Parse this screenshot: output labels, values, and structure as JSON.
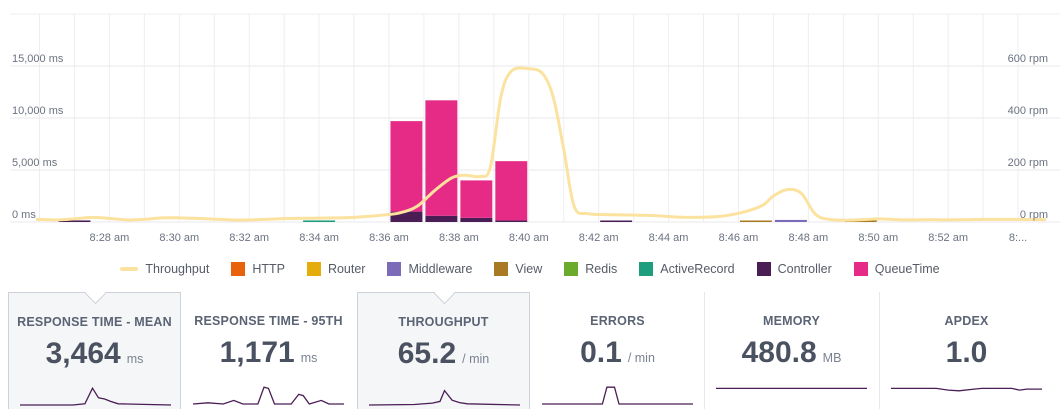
{
  "chart_data": {
    "type": "bar",
    "y_left_label": "",
    "y_right_label": "",
    "y_left_ticks": [
      "0 ms",
      "5,000 ms",
      "10,000 ms",
      "15,000 ms"
    ],
    "y_right_ticks": [
      "0 rpm",
      "200 rpm",
      "400 rpm",
      "600 rpm"
    ],
    "ylim_left": [
      0,
      20000
    ],
    "ylim_right": [
      0,
      800
    ],
    "x_tick_labels": [
      "8:28 am",
      "8:30 am",
      "8:32 am",
      "8:34 am",
      "8:36 am",
      "8:38 am",
      "8:40 am",
      "8:42 am",
      "8:44 am",
      "8:46 am",
      "8:48 am",
      "8:50 am",
      "8:52 am",
      "8:..."
    ],
    "x_range_minutes": [
      25.9,
      54.8
    ],
    "bar_series": [
      {
        "name": "HTTP",
        "color": "#e8620c"
      },
      {
        "name": "Router",
        "color": "#e5ad0b"
      },
      {
        "name": "Middleware",
        "color": "#7b6bb8"
      },
      {
        "name": "View",
        "color": "#a87a24"
      },
      {
        "name": "Redis",
        "color": "#6aab2e"
      },
      {
        "name": "ActiveRecord",
        "color": "#1f9e7e"
      },
      {
        "name": "Controller",
        "color": "#4a1d55"
      },
      {
        "name": "QueueTime",
        "color": "#e62b87"
      }
    ],
    "bars": [
      {
        "minute": 27,
        "segments": {
          "Controller": 150
        }
      },
      {
        "minute": 34,
        "segments": {
          "ActiveRecord": 150
        }
      },
      {
        "minute": 36.5,
        "segments": {
          "QueueTime": 8700,
          "Controller": 1000
        }
      },
      {
        "minute": 37.5,
        "segments": {
          "QueueTime": 11100,
          "Controller": 600
        }
      },
      {
        "minute": 38.5,
        "segments": {
          "QueueTime": 3600,
          "Controller": 400
        }
      },
      {
        "minute": 39.5,
        "segments": {
          "QueueTime": 5700,
          "Controller": 150
        }
      },
      {
        "minute": 42.5,
        "segments": {
          "Controller": 100
        }
      },
      {
        "minute": 46.5,
        "segments": {
          "View": 100
        }
      },
      {
        "minute": 47.5,
        "segments": {
          "Middleware": 200
        }
      },
      {
        "minute": 49.5,
        "segments": {
          "View": 100
        }
      }
    ],
    "throughput": {
      "name": "Throughput",
      "color": "#fbe29f",
      "points": [
        [
          25.9,
          10
        ],
        [
          26.5,
          8
        ],
        [
          27,
          12
        ],
        [
          27.5,
          18
        ],
        [
          28,
          14
        ],
        [
          28.5,
          8
        ],
        [
          29,
          10
        ],
        [
          29.5,
          16
        ],
        [
          30,
          16
        ],
        [
          30.5,
          14
        ],
        [
          31,
          11
        ],
        [
          31.5,
          8
        ],
        [
          32,
          8
        ],
        [
          33,
          13
        ],
        [
          34,
          15
        ],
        [
          35,
          18
        ],
        [
          35.7,
          25
        ],
        [
          36.3,
          35
        ],
        [
          36.8,
          60
        ],
        [
          37.3,
          120
        ],
        [
          37.8,
          170
        ],
        [
          38.2,
          180
        ],
        [
          38.6,
          175
        ],
        [
          38.9,
          210
        ],
        [
          39.2,
          480
        ],
        [
          39.5,
          580
        ],
        [
          40,
          590
        ],
        [
          40.4,
          570
        ],
        [
          40.7,
          480
        ],
        [
          41,
          280
        ],
        [
          41.3,
          60
        ],
        [
          41.7,
          32
        ],
        [
          42.5,
          28
        ],
        [
          43.5,
          25
        ],
        [
          44.5,
          18
        ],
        [
          45.5,
          22
        ],
        [
          46.2,
          40
        ],
        [
          46.7,
          65
        ],
        [
          47,
          100
        ],
        [
          47.4,
          125
        ],
        [
          47.8,
          110
        ],
        [
          48.2,
          30
        ],
        [
          48.6,
          10
        ],
        [
          49.2,
          7
        ],
        [
          50,
          12
        ],
        [
          50.5,
          9
        ],
        [
          51,
          8
        ],
        [
          51.5,
          9
        ],
        [
          52,
          8
        ],
        [
          53,
          10
        ],
        [
          54,
          10
        ],
        [
          54.8,
          9
        ]
      ]
    }
  },
  "legend": [
    {
      "label": "Throughput",
      "color": "#fbe29f",
      "kind": "line"
    },
    {
      "label": "HTTP",
      "color": "#e8620c",
      "kind": "box"
    },
    {
      "label": "Router",
      "color": "#e5ad0b",
      "kind": "box"
    },
    {
      "label": "Middleware",
      "color": "#7b6bb8",
      "kind": "box"
    },
    {
      "label": "View",
      "color": "#a87a24",
      "kind": "box"
    },
    {
      "label": "Redis",
      "color": "#6aab2e",
      "kind": "box"
    },
    {
      "label": "ActiveRecord",
      "color": "#1f9e7e",
      "kind": "box"
    },
    {
      "label": "Controller",
      "color": "#4a1d55",
      "kind": "box"
    },
    {
      "label": "QueueTime",
      "color": "#e62b87",
      "kind": "box"
    }
  ],
  "cards": [
    {
      "title": "RESPONSE TIME - MEAN",
      "value": "3,464",
      "unit": "ms",
      "selected": true,
      "spark": [
        [
          0,
          0
        ],
        [
          0.35,
          0
        ],
        [
          0.43,
          0.05
        ],
        [
          0.48,
          0.7
        ],
        [
          0.52,
          0.3
        ],
        [
          0.56,
          0.25
        ],
        [
          0.6,
          0.15
        ],
        [
          0.65,
          0.05
        ],
        [
          1,
          0
        ]
      ]
    },
    {
      "title": "RESPONSE TIME - 95TH",
      "value": "1,171",
      "unit": "ms",
      "selected": false,
      "spark": [
        [
          0,
          0
        ],
        [
          0.1,
          0.05
        ],
        [
          0.2,
          0
        ],
        [
          0.27,
          0.15
        ],
        [
          0.33,
          0
        ],
        [
          0.43,
          0
        ],
        [
          0.47,
          0.7
        ],
        [
          0.5,
          0.65
        ],
        [
          0.54,
          0
        ],
        [
          0.65,
          0
        ],
        [
          0.7,
          0.4
        ],
        [
          0.73,
          0.35
        ],
        [
          0.77,
          0
        ],
        [
          0.85,
          0.15
        ],
        [
          0.9,
          0
        ],
        [
          1,
          0
        ]
      ]
    },
    {
      "title": "THROUGHPUT",
      "value": "65.2",
      "unit": "/ min",
      "selected": true,
      "spark": [
        [
          0,
          0
        ],
        [
          0.3,
          0.02
        ],
        [
          0.42,
          0.08
        ],
        [
          0.47,
          0.15
        ],
        [
          0.5,
          0.6
        ],
        [
          0.55,
          0.2
        ],
        [
          0.6,
          0.1
        ],
        [
          0.65,
          0.05
        ],
        [
          1,
          0
        ]
      ]
    },
    {
      "title": "ERRORS",
      "value": "0.1",
      "unit": "/ min",
      "selected": false,
      "spark": [
        [
          0,
          0
        ],
        [
          0.4,
          0
        ],
        [
          0.43,
          0.7
        ],
        [
          0.48,
          0.7
        ],
        [
          0.51,
          0
        ],
        [
          1,
          0
        ]
      ]
    },
    {
      "title": "MEMORY",
      "value": "480.8",
      "unit": "MB",
      "selected": false,
      "spark": [
        [
          0,
          0.65
        ],
        [
          1,
          0.65
        ]
      ]
    },
    {
      "title": "APDEX",
      "value": "1.0",
      "unit": "",
      "selected": false,
      "spark": [
        [
          0,
          0.65
        ],
        [
          0.3,
          0.65
        ],
        [
          0.38,
          0.58
        ],
        [
          0.45,
          0.55
        ],
        [
          0.55,
          0.62
        ],
        [
          0.6,
          0.65
        ],
        [
          0.8,
          0.65
        ],
        [
          0.85,
          0.58
        ],
        [
          0.9,
          0.62
        ],
        [
          1,
          0.62
        ]
      ]
    }
  ],
  "spark_color": "#4a1d55"
}
